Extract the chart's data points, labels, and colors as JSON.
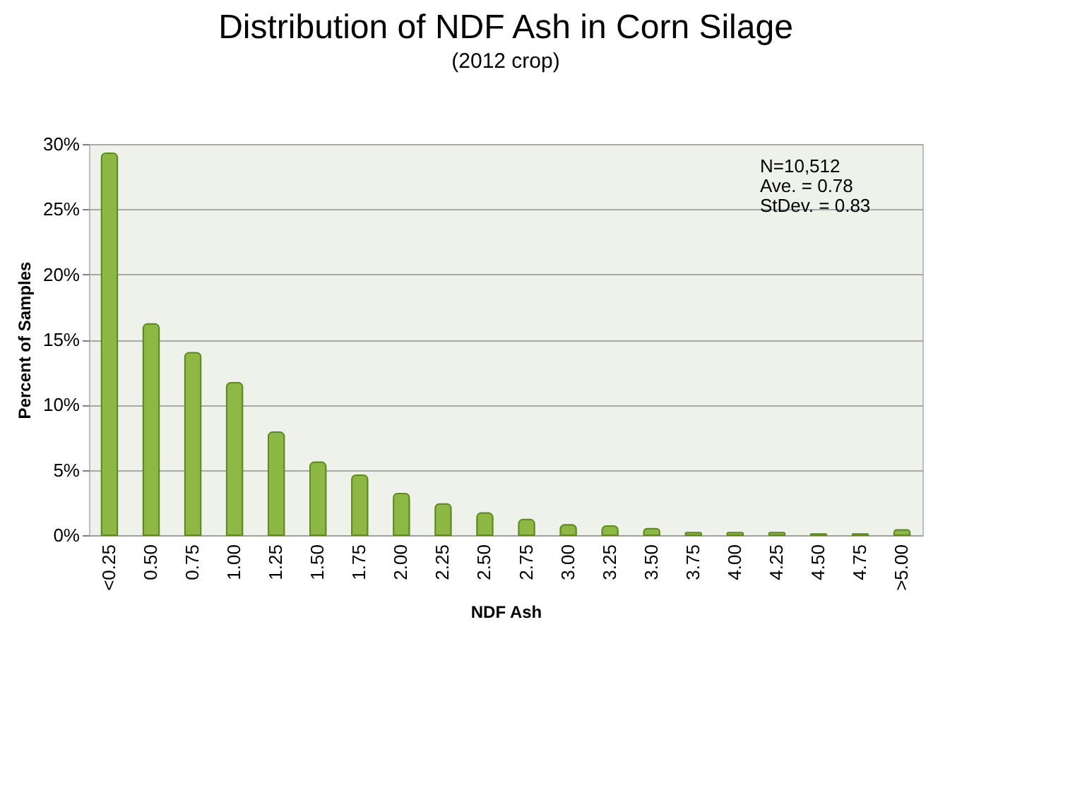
{
  "chart_data": {
    "type": "bar",
    "title": "Distribution of NDF Ash in Corn Silage",
    "subtitle": "(2012 crop)",
    "xlabel": "NDF Ash",
    "ylabel": "Percent of Samples",
    "categories": [
      "<0.25",
      "0.50",
      "0.75",
      "1.00",
      "1.25",
      "1.50",
      "1.75",
      "2.00",
      "2.25",
      "2.50",
      "2.75",
      "3.00",
      "3.25",
      "3.50",
      "3.75",
      "4.00",
      "4.25",
      "4.50",
      "4.75",
      ">5.00"
    ],
    "values": [
      29.3,
      16.2,
      14.0,
      11.7,
      7.9,
      5.6,
      4.6,
      3.2,
      2.4,
      1.7,
      1.2,
      0.8,
      0.7,
      0.5,
      0.2,
      0.2,
      0.2,
      0.1,
      0.1,
      0.4
    ],
    "color": "#8db843",
    "ylim": [
      0,
      30
    ],
    "yticks": [
      {
        "value": 0,
        "label": "0%"
      },
      {
        "value": 5,
        "label": "5%"
      },
      {
        "value": 10,
        "label": "10%"
      },
      {
        "value": 15,
        "label": "15%"
      },
      {
        "value": 20,
        "label": "20%"
      },
      {
        "value": 25,
        "label": "25%"
      },
      {
        "value": 30,
        "label": "30%"
      }
    ],
    "grid": "y",
    "annotations": [
      "N=10,512",
      "Ave. = 0.78",
      "StDev. = 0.83"
    ]
  }
}
